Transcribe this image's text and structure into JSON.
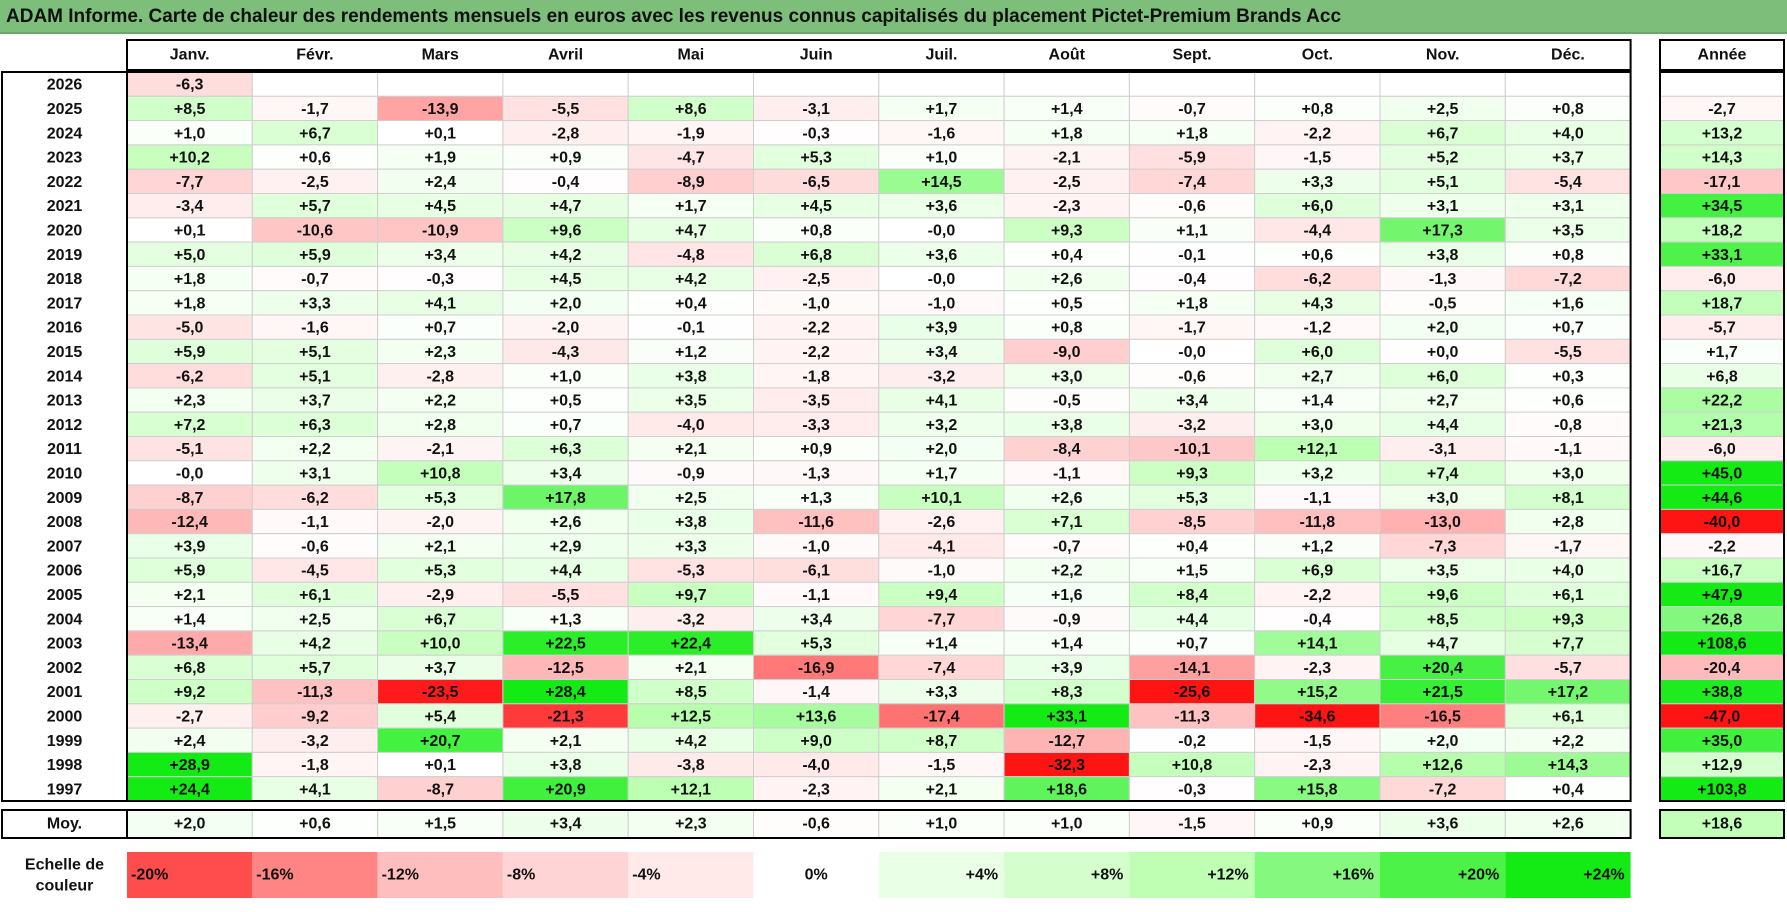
{
  "chart_data": {
    "type": "heatmap",
    "title": "ADAM Informe. Carte de chaleur des rendements mensuels en euros avec les revenus connus capitalisés du placement Pictet-Premium Brands Acc",
    "months": [
      "Janv.",
      "Févr.",
      "Mars",
      "Avril",
      "Mai",
      "Juin",
      "Juil.",
      "Août",
      "Sept.",
      "Oct.",
      "Nov.",
      "Déc."
    ],
    "annual_label": "Année",
    "average_label": "Moy.",
    "rows": [
      {
        "year": "2026",
        "months": [
          "-6,3",
          "",
          "",
          "",
          "",
          "",
          "",
          "",
          "",
          "",
          "",
          ""
        ],
        "annual": ""
      },
      {
        "year": "2025",
        "months": [
          "+8,5",
          "-1,7",
          "-13,9",
          "-5,5",
          "+8,6",
          "-3,1",
          "+1,7",
          "+1,4",
          "-0,7",
          "+0,8",
          "+2,5",
          "+0,8"
        ],
        "annual": "-2,7"
      },
      {
        "year": "2024",
        "months": [
          "+1,0",
          "+6,7",
          "+0,1",
          "-2,8",
          "-1,9",
          "-0,3",
          "-1,6",
          "+1,8",
          "+1,8",
          "-2,2",
          "+6,7",
          "+4,0"
        ],
        "annual": "+13,2"
      },
      {
        "year": "2023",
        "months": [
          "+10,2",
          "+0,6",
          "+1,9",
          "+0,9",
          "-4,7",
          "+5,3",
          "+1,0",
          "-2,1",
          "-5,9",
          "-1,5",
          "+5,2",
          "+3,7"
        ],
        "annual": "+14,3"
      },
      {
        "year": "2022",
        "months": [
          "-7,7",
          "-2,5",
          "+2,4",
          "-0,4",
          "-8,9",
          "-6,5",
          "+14,5",
          "-2,5",
          "-7,4",
          "+3,3",
          "+5,1",
          "-5,4"
        ],
        "annual": "-17,1"
      },
      {
        "year": "2021",
        "months": [
          "-3,4",
          "+5,7",
          "+4,5",
          "+4,7",
          "+1,7",
          "+4,5",
          "+3,6",
          "-2,3",
          "-0,6",
          "+6,0",
          "+3,1",
          "+3,1"
        ],
        "annual": "+34,5"
      },
      {
        "year": "2020",
        "months": [
          "+0,1",
          "-10,6",
          "-10,9",
          "+9,6",
          "+4,7",
          "+0,8",
          "-0,0",
          "+9,3",
          "+1,1",
          "-4,4",
          "+17,3",
          "+3,5"
        ],
        "annual": "+18,2"
      },
      {
        "year": "2019",
        "months": [
          "+5,0",
          "+5,9",
          "+3,4",
          "+4,2",
          "-4,8",
          "+6,8",
          "+3,6",
          "+0,4",
          "-0,1",
          "+0,6",
          "+3,8",
          "+0,8"
        ],
        "annual": "+33,1"
      },
      {
        "year": "2018",
        "months": [
          "+1,8",
          "-0,7",
          "-0,3",
          "+4,5",
          "+4,2",
          "-2,5",
          "-0,0",
          "+2,6",
          "-0,4",
          "-6,2",
          "-1,3",
          "-7,2"
        ],
        "annual": "-6,0"
      },
      {
        "year": "2017",
        "months": [
          "+1,8",
          "+3,3",
          "+4,1",
          "+2,0",
          "+0,4",
          "-1,0",
          "-1,0",
          "+0,5",
          "+1,8",
          "+4,3",
          "-0,5",
          "+1,6"
        ],
        "annual": "+18,7"
      },
      {
        "year": "2016",
        "months": [
          "-5,0",
          "-1,6",
          "+0,7",
          "-2,0",
          "-0,1",
          "-2,2",
          "+3,9",
          "+0,8",
          "-1,7",
          "-1,2",
          "+2,0",
          "+0,7"
        ],
        "annual": "-5,7"
      },
      {
        "year": "2015",
        "months": [
          "+5,9",
          "+5,1",
          "+2,3",
          "-4,3",
          "+1,2",
          "-2,2",
          "+3,4",
          "-9,0",
          "-0,0",
          "+6,0",
          "+0,0",
          "-5,5"
        ],
        "annual": "+1,7"
      },
      {
        "year": "2014",
        "months": [
          "-6,2",
          "+5,1",
          "-2,8",
          "+1,0",
          "+3,8",
          "-1,8",
          "-3,2",
          "+3,0",
          "-0,6",
          "+2,7",
          "+6,0",
          "+0,3"
        ],
        "annual": "+6,8"
      },
      {
        "year": "2013",
        "months": [
          "+2,3",
          "+3,7",
          "+2,2",
          "+0,5",
          "+3,5",
          "-3,5",
          "+4,1",
          "-0,5",
          "+3,4",
          "+1,4",
          "+2,7",
          "+0,6"
        ],
        "annual": "+22,2"
      },
      {
        "year": "2012",
        "months": [
          "+7,2",
          "+6,3",
          "+2,8",
          "+0,7",
          "-4,0",
          "-3,3",
          "+3,2",
          "+3,8",
          "-3,2",
          "+3,0",
          "+4,4",
          "-0,8"
        ],
        "annual": "+21,3"
      },
      {
        "year": "2011",
        "months": [
          "-5,1",
          "+2,2",
          "-2,1",
          "+6,3",
          "+2,1",
          "+0,9",
          "+2,0",
          "-8,4",
          "-10,1",
          "+12,1",
          "-3,1",
          "-1,1"
        ],
        "annual": "-6,0"
      },
      {
        "year": "2010",
        "months": [
          "-0,0",
          "+3,1",
          "+10,8",
          "+3,4",
          "-0,9",
          "-1,3",
          "+1,7",
          "-1,1",
          "+9,3",
          "+3,2",
          "+7,4",
          "+3,0"
        ],
        "annual": "+45,0"
      },
      {
        "year": "2009",
        "months": [
          "-8,7",
          "-6,2",
          "+5,3",
          "+17,8",
          "+2,5",
          "+1,3",
          "+10,1",
          "+2,6",
          "+5,3",
          "-1,1",
          "+3,0",
          "+8,1"
        ],
        "annual": "+44,6"
      },
      {
        "year": "2008",
        "months": [
          "-12,4",
          "-1,1",
          "-2,0",
          "+2,6",
          "+3,8",
          "-11,6",
          "-2,6",
          "+7,1",
          "-8,5",
          "-11,8",
          "-13,0",
          "+2,8"
        ],
        "annual": "-40,0"
      },
      {
        "year": "2007",
        "months": [
          "+3,9",
          "-0,6",
          "+2,1",
          "+2,9",
          "+3,3",
          "-1,0",
          "-4,1",
          "-0,7",
          "+0,4",
          "+1,2",
          "-7,3",
          "-1,7"
        ],
        "annual": "-2,2"
      },
      {
        "year": "2006",
        "months": [
          "+5,9",
          "-4,5",
          "+5,3",
          "+4,4",
          "-5,3",
          "-6,1",
          "-1,0",
          "+2,2",
          "+1,5",
          "+6,9",
          "+3,5",
          "+4,0"
        ],
        "annual": "+16,7"
      },
      {
        "year": "2005",
        "months": [
          "+2,1",
          "+6,1",
          "-2,9",
          "-5,5",
          "+9,7",
          "-1,1",
          "+9,4",
          "+1,6",
          "+8,4",
          "-2,2",
          "+9,6",
          "+6,1"
        ],
        "annual": "+47,9"
      },
      {
        "year": "2004",
        "months": [
          "+1,4",
          "+2,5",
          "+6,7",
          "+1,3",
          "-3,2",
          "+3,4",
          "-7,7",
          "-0,9",
          "+4,4",
          "-0,4",
          "+8,5",
          "+9,3"
        ],
        "annual": "+26,8"
      },
      {
        "year": "2003",
        "months": [
          "-13,4",
          "+4,2",
          "+10,0",
          "+22,5",
          "+22,4",
          "+5,3",
          "+1,4",
          "+1,4",
          "+0,7",
          "+14,1",
          "+4,7",
          "+7,7"
        ],
        "annual": "+108,6"
      },
      {
        "year": "2002",
        "months": [
          "+6,8",
          "+5,7",
          "+3,7",
          "-12,5",
          "+2,1",
          "-16,9",
          "-7,4",
          "+3,9",
          "-14,1",
          "-2,3",
          "+20,4",
          "-5,7"
        ],
        "annual": "-20,4"
      },
      {
        "year": "2001",
        "months": [
          "+9,2",
          "-11,3",
          "-23,5",
          "+28,4",
          "+8,5",
          "-1,4",
          "+3,3",
          "+8,3",
          "-25,6",
          "+15,2",
          "+21,5",
          "+17,2"
        ],
        "annual": "+38,8"
      },
      {
        "year": "2000",
        "months": [
          "-2,7",
          "-9,2",
          "+5,4",
          "-21,3",
          "+12,5",
          "+13,6",
          "-17,4",
          "+33,1",
          "-11,3",
          "-34,6",
          "-16,5",
          "+6,1"
        ],
        "annual": "-47,0"
      },
      {
        "year": "1999",
        "months": [
          "+2,4",
          "-3,2",
          "+20,7",
          "+2,1",
          "+4,2",
          "+9,0",
          "+8,7",
          "-12,7",
          "-0,2",
          "-1,5",
          "+2,0",
          "+2,2"
        ],
        "annual": "+35,0"
      },
      {
        "year": "1998",
        "months": [
          "+28,9",
          "-1,8",
          "+0,1",
          "+3,8",
          "-3,8",
          "-4,0",
          "-1,5",
          "-32,3",
          "+10,8",
          "-2,3",
          "+12,6",
          "+14,3"
        ],
        "annual": "+12,9"
      },
      {
        "year": "1997",
        "months": [
          "+24,4",
          "+4,1",
          "-8,7",
          "+20,9",
          "+12,1",
          "-2,3",
          "+2,1",
          "+18,6",
          "-0,3",
          "+15,8",
          "-7,2",
          "+0,4"
        ],
        "annual": "+103,8"
      }
    ],
    "average": {
      "months": [
        "+2,0",
        "+0,6",
        "+1,5",
        "+3,4",
        "+2,3",
        "-0,6",
        "+1,0",
        "+1,0",
        "-1,5",
        "+0,9",
        "+3,6",
        "+2,6"
      ],
      "annual": "+18,6"
    },
    "color_scale": {
      "label_line1": "Echelle de",
      "label_line2": "couleur",
      "stops": [
        "-20%",
        "-16%",
        "-12%",
        "-8%",
        "-4%",
        "0%",
        "+4%",
        "+8%",
        "+12%",
        "+16%",
        "+20%",
        "+24%"
      ],
      "values": [
        -20,
        -16,
        -12,
        -8,
        -4,
        0,
        4,
        8,
        12,
        16,
        20,
        24
      ]
    },
    "colors": {
      "negative_max": "#ff0000",
      "positive_max": "#00ee00",
      "neutral": "#ffffff",
      "title_bg": "#7dbf7a"
    }
  }
}
